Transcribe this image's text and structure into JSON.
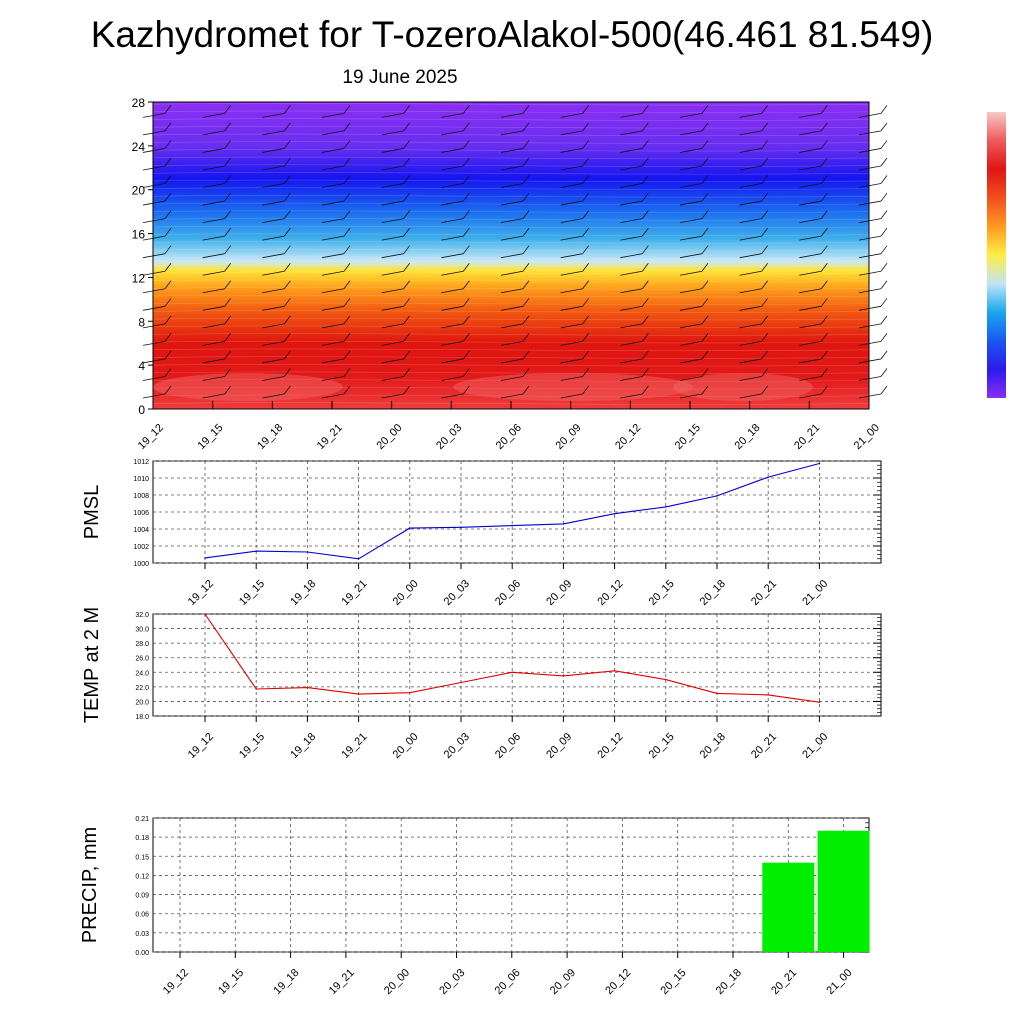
{
  "header": {
    "title": "Kazhydromet for T-ozeroAlakol-500(46.461 81.549)",
    "date": "19 June 2025"
  },
  "colors": {
    "pmsl_line": "#0000cc",
    "temp_line": "#e00000",
    "precip_bar": "#00ee00",
    "grid": "#555555"
  },
  "time_labels": [
    "19_12",
    "19_15",
    "19_18",
    "19_21",
    "20_00",
    "20_03",
    "20_06",
    "20_09",
    "20_12",
    "20_15",
    "20_18",
    "20_21",
    "21_00"
  ],
  "chart_data": [
    {
      "id": "cross_section",
      "type": "heatmap",
      "title": "",
      "xlabel": "",
      "ylabel": "",
      "y_ticks": [
        "0",
        "4",
        "8",
        "12",
        "16",
        "20",
        "24",
        "28"
      ],
      "ylim": [
        0,
        28
      ],
      "x": [
        "19_12",
        "19_15",
        "19_18",
        "19_21",
        "20_00",
        "20_03",
        "20_06",
        "20_09",
        "20_12",
        "20_15",
        "20_18",
        "20_21",
        "21_00"
      ],
      "color_bands": [
        {
          "y": 0,
          "color": "#f03c3c"
        },
        {
          "y": 3,
          "color": "#e21818"
        },
        {
          "y": 6,
          "color": "#e0150f"
        },
        {
          "y": 9,
          "color": "#f25a10"
        },
        {
          "y": 11,
          "color": "#ff9c1a"
        },
        {
          "y": 12.6,
          "color": "#ffe233"
        },
        {
          "y": 13.5,
          "color": "#c8e8f8"
        },
        {
          "y": 15.5,
          "color": "#3fb0ea"
        },
        {
          "y": 18,
          "color": "#1a6cf0"
        },
        {
          "y": 21,
          "color": "#1515f0"
        },
        {
          "y": 24,
          "color": "#6a2ef0"
        },
        {
          "y": 28,
          "color": "#8a2ff2"
        }
      ],
      "colorbar_stops": [
        "#f8c8c8",
        "#ee5a5a",
        "#e01515",
        "#f0501a",
        "#ff9a22",
        "#ffee44",
        "#c0e4f6",
        "#1aa8ee",
        "#1a58ee",
        "#2a1aee",
        "#8a2ff2"
      ],
      "grid": false,
      "legend": "colorbar right"
    },
    {
      "id": "pmsl",
      "type": "line",
      "ylabel": "PMSL",
      "x": [
        "19_12",
        "19_15",
        "19_18",
        "19_21",
        "20_00",
        "20_03",
        "20_06",
        "20_09",
        "20_12",
        "20_15",
        "20_18",
        "20_21",
        "21_00"
      ],
      "y_ticks": [
        "1000",
        "1002",
        "1004",
        "1006",
        "1008",
        "1010",
        "1012"
      ],
      "ylim": [
        1000,
        1012
      ],
      "series": [
        {
          "values": [
            1000.6,
            1001.4,
            1001.3,
            1000.5,
            1004.1,
            1004.2,
            1004.4,
            1004.6,
            1005.8,
            1006.6,
            1007.9,
            1010.1,
            1011.7
          ]
        }
      ],
      "grid": true
    },
    {
      "id": "temp",
      "type": "line",
      "ylabel": "TEMP at 2 M",
      "x": [
        "19_12",
        "19_15",
        "19_18",
        "19_21",
        "20_00",
        "20_03",
        "20_06",
        "20_09",
        "20_12",
        "20_15",
        "20_18",
        "20_21",
        "21_00"
      ],
      "y_ticks": [
        "18.0",
        "20.0",
        "22.0",
        "24.0",
        "26.0",
        "28.0",
        "30.0",
        "32.0"
      ],
      "ylim": [
        18,
        32
      ],
      "series": [
        {
          "values": [
            32.0,
            21.7,
            21.9,
            21.0,
            21.2,
            22.6,
            24.0,
            23.5,
            24.2,
            23.0,
            21.1,
            20.9,
            19.9
          ]
        }
      ],
      "grid": true
    },
    {
      "id": "precip",
      "type": "bar",
      "ylabel": "PRECIP, mm",
      "categories": [
        "19_12",
        "19_15",
        "19_18",
        "19_21",
        "20_00",
        "20_03",
        "20_06",
        "20_09",
        "20_12",
        "20_15",
        "20_18",
        "20_21",
        "21_00"
      ],
      "y_ticks": [
        "0.00",
        "0.03",
        "0.06",
        "0.09",
        "0.12",
        "0.15",
        "0.18",
        "0.21"
      ],
      "ylim": [
        0,
        0.21
      ],
      "values": [
        0,
        0,
        0,
        0,
        0,
        0,
        0,
        0,
        0,
        0,
        0,
        0.14,
        0.19
      ],
      "grid": true
    }
  ]
}
